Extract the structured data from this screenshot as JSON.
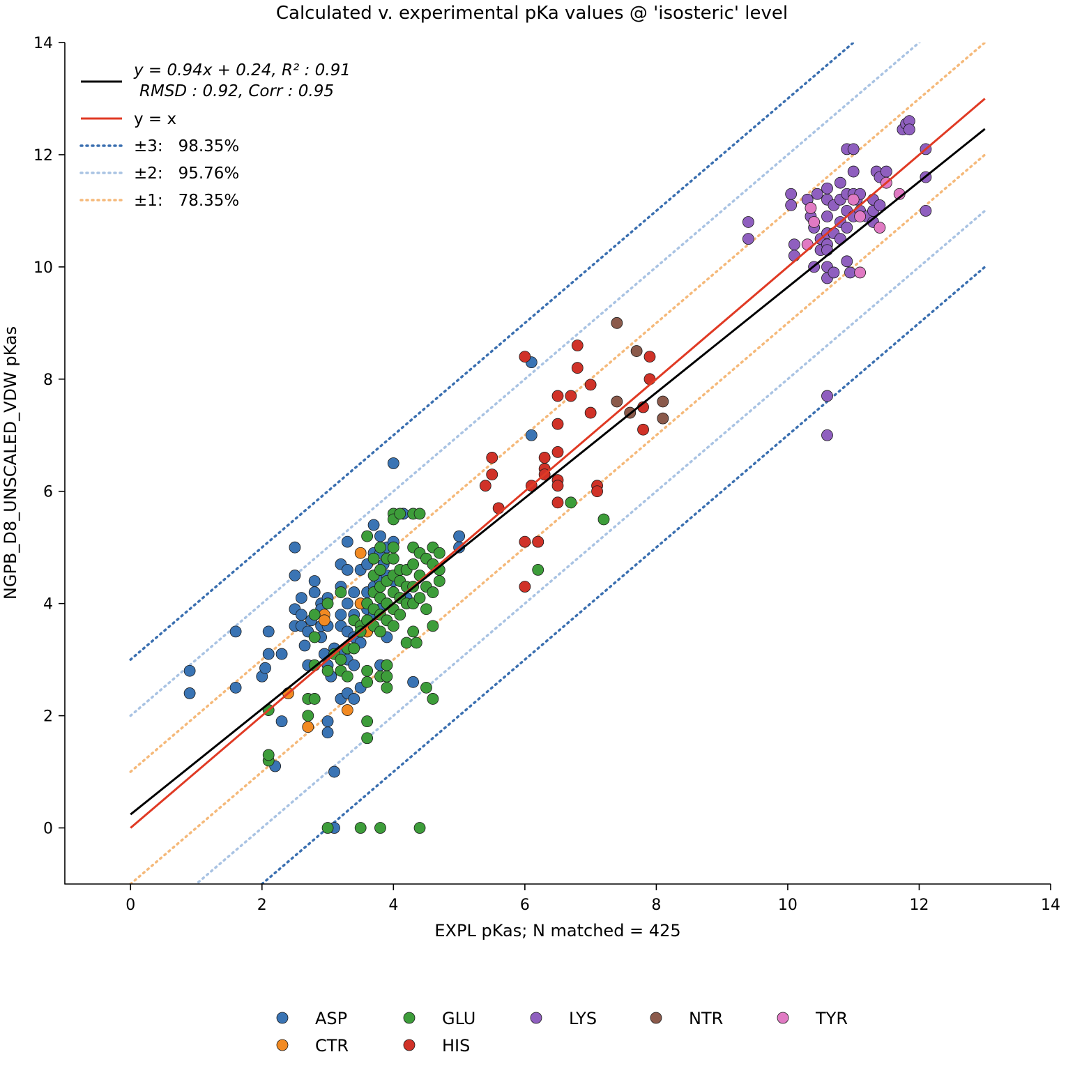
{
  "chart_data": {
    "type": "scatter",
    "title": "Calculated v. experimental pKa values @ 'isosteric' level",
    "xlabel": "EXPL pKas; N matched = 425",
    "ylabel": "NGPB_D8_UNSCALED_VDW pKas",
    "xlim": [
      -1,
      14
    ],
    "ylim": [
      -1,
      14
    ],
    "xticks": [
      0,
      2,
      4,
      6,
      8,
      10,
      12,
      14
    ],
    "yticks": [
      0,
      2,
      4,
      6,
      8,
      10,
      12,
      14
    ],
    "grid": false,
    "fit": {
      "slope": 0.94,
      "intercept": 0.24,
      "x_range": [
        0,
        13
      ]
    },
    "identity_range": [
      0,
      13
    ],
    "bands": [
      {
        "offset": 3,
        "color": "#3a6fb0",
        "label": "±3:   98.35%"
      },
      {
        "offset": 2,
        "color": "#a9c3e3",
        "label": "±2:   95.76%"
      },
      {
        "offset": 1,
        "color": "#f5b97a",
        "label": "±1:   78.35%"
      }
    ],
    "line_legend": {
      "fit_line1": "y = 0.94x + 0.24, R² : 0.91",
      "fit_line2": "RMSD : 0.92, Corr : 0.95",
      "identity": "y = x",
      "fit_color": "#000000",
      "identity_color": "#e03a24"
    },
    "series": [
      {
        "name": "ASP",
        "color": "#3a74b4",
        "points": [
          [
            0.9,
            2.8
          ],
          [
            0.9,
            2.4
          ],
          [
            1.6,
            3.5
          ],
          [
            1.6,
            2.5
          ],
          [
            2.0,
            2.7
          ],
          [
            2.05,
            2.85
          ],
          [
            2.1,
            3.5
          ],
          [
            2.1,
            3.1
          ],
          [
            2.2,
            1.1
          ],
          [
            2.3,
            3.1
          ],
          [
            2.3,
            1.9
          ],
          [
            2.5,
            5.0
          ],
          [
            2.5,
            4.5
          ],
          [
            2.5,
            3.9
          ],
          [
            2.5,
            3.6
          ],
          [
            2.6,
            4.1
          ],
          [
            2.6,
            3.8
          ],
          [
            2.6,
            3.6
          ],
          [
            2.65,
            3.25
          ],
          [
            2.7,
            2.9
          ],
          [
            2.7,
            3.5
          ],
          [
            2.75,
            3.7
          ],
          [
            2.8,
            4.4
          ],
          [
            2.8,
            4.2
          ],
          [
            2.9,
            4.0
          ],
          [
            2.9,
            3.9
          ],
          [
            2.9,
            3.6
          ],
          [
            2.9,
            3.4
          ],
          [
            2.95,
            3.1
          ],
          [
            3.0,
            4.1
          ],
          [
            3.0,
            3.6
          ],
          [
            3.0,
            2.9
          ],
          [
            3.0,
            1.9
          ],
          [
            3.0,
            1.7
          ],
          [
            3.05,
            2.7
          ],
          [
            3.1,
            3.2
          ],
          [
            3.1,
            1.0
          ],
          [
            3.1,
            0.0
          ],
          [
            3.2,
            4.7
          ],
          [
            3.2,
            4.3
          ],
          [
            3.2,
            3.8
          ],
          [
            3.2,
            3.6
          ],
          [
            3.2,
            3.1
          ],
          [
            3.2,
            2.3
          ],
          [
            3.3,
            5.1
          ],
          [
            3.3,
            4.6
          ],
          [
            3.3,
            4.0
          ],
          [
            3.3,
            3.5
          ],
          [
            3.3,
            3.0
          ],
          [
            3.3,
            2.4
          ],
          [
            3.4,
            4.2
          ],
          [
            3.4,
            3.8
          ],
          [
            3.4,
            3.4
          ],
          [
            3.4,
            2.9
          ],
          [
            3.4,
            2.3
          ],
          [
            3.5,
            4.6
          ],
          [
            3.5,
            4.0
          ],
          [
            3.5,
            3.3
          ],
          [
            3.5,
            2.5
          ],
          [
            3.6,
            4.7
          ],
          [
            3.6,
            4.2
          ],
          [
            3.6,
            3.9
          ],
          [
            3.6,
            3.5
          ],
          [
            3.7,
            5.4
          ],
          [
            3.7,
            4.9
          ],
          [
            3.7,
            4.3
          ],
          [
            3.7,
            3.8
          ],
          [
            3.8,
            5.2
          ],
          [
            3.8,
            4.9
          ],
          [
            3.8,
            4.4
          ],
          [
            3.8,
            3.9
          ],
          [
            3.8,
            2.9
          ],
          [
            3.85,
            4.7
          ],
          [
            3.9,
            5.0
          ],
          [
            3.9,
            4.5
          ],
          [
            3.9,
            4.0
          ],
          [
            3.9,
            3.4
          ],
          [
            3.9,
            2.9
          ],
          [
            4.0,
            6.5
          ],
          [
            4.0,
            5.1
          ],
          [
            4.0,
            4.4
          ],
          [
            4.15,
            5.6
          ],
          [
            4.2,
            4.1
          ],
          [
            4.3,
            2.6
          ],
          [
            5.0,
            5.2
          ],
          [
            5.0,
            5.0
          ],
          [
            6.1,
            8.3
          ],
          [
            6.1,
            7.0
          ]
        ]
      },
      {
        "name": "CTR",
        "color": "#f28a22",
        "points": [
          [
            2.4,
            2.4
          ],
          [
            2.7,
            1.8
          ],
          [
            2.95,
            3.8
          ],
          [
            2.95,
            3.7
          ],
          [
            3.3,
            2.1
          ],
          [
            3.5,
            4.9
          ],
          [
            3.5,
            4.0
          ],
          [
            3.6,
            3.5
          ]
        ]
      },
      {
        "name": "GLU",
        "color": "#3d9d3a",
        "points": [
          [
            2.1,
            1.2
          ],
          [
            2.1,
            1.3
          ],
          [
            2.1,
            2.1
          ],
          [
            2.7,
            2.3
          ],
          [
            2.7,
            2.0
          ],
          [
            2.8,
            2.3
          ],
          [
            2.8,
            3.4
          ],
          [
            2.8,
            3.8
          ],
          [
            2.8,
            2.9
          ],
          [
            3.0,
            4.0
          ],
          [
            3.0,
            2.8
          ],
          [
            3.0,
            0.0
          ],
          [
            3.1,
            3.1
          ],
          [
            3.2,
            4.2
          ],
          [
            3.2,
            3.0
          ],
          [
            3.2,
            2.8
          ],
          [
            3.3,
            2.7
          ],
          [
            3.3,
            3.2
          ],
          [
            3.4,
            3.7
          ],
          [
            3.4,
            3.2
          ],
          [
            3.5,
            3.6
          ],
          [
            3.5,
            3.5
          ],
          [
            3.5,
            0.0
          ],
          [
            3.6,
            5.2
          ],
          [
            3.6,
            4.0
          ],
          [
            3.6,
            3.7
          ],
          [
            3.6,
            2.8
          ],
          [
            3.6,
            2.6
          ],
          [
            3.6,
            1.9
          ],
          [
            3.6,
            1.6
          ],
          [
            3.7,
            4.8
          ],
          [
            3.7,
            4.5
          ],
          [
            3.7,
            4.2
          ],
          [
            3.7,
            3.9
          ],
          [
            3.7,
            3.6
          ],
          [
            3.8,
            5.0
          ],
          [
            3.8,
            4.6
          ],
          [
            3.8,
            4.3
          ],
          [
            3.8,
            4.1
          ],
          [
            3.8,
            3.8
          ],
          [
            3.8,
            3.5
          ],
          [
            3.8,
            2.7
          ],
          [
            3.8,
            0.0
          ],
          [
            3.9,
            4.8
          ],
          [
            3.9,
            4.4
          ],
          [
            3.9,
            4.0
          ],
          [
            3.9,
            3.7
          ],
          [
            3.9,
            2.9
          ],
          [
            3.9,
            2.7
          ],
          [
            3.9,
            2.5
          ],
          [
            4.0,
            5.6
          ],
          [
            4.0,
            5.5
          ],
          [
            4.0,
            5.0
          ],
          [
            4.0,
            4.8
          ],
          [
            4.0,
            4.5
          ],
          [
            4.0,
            4.2
          ],
          [
            4.0,
            3.9
          ],
          [
            4.0,
            3.6
          ],
          [
            4.1,
            5.6
          ],
          [
            4.1,
            4.6
          ],
          [
            4.1,
            4.4
          ],
          [
            4.1,
            4.1
          ],
          [
            4.1,
            3.8
          ],
          [
            4.2,
            4.6
          ],
          [
            4.2,
            4.3
          ],
          [
            4.2,
            4.0
          ],
          [
            4.2,
            3.3
          ],
          [
            4.3,
            5.6
          ],
          [
            4.3,
            5.0
          ],
          [
            4.3,
            4.7
          ],
          [
            4.3,
            4.3
          ],
          [
            4.3,
            4.0
          ],
          [
            4.3,
            3.5
          ],
          [
            4.35,
            3.3
          ],
          [
            4.4,
            5.6
          ],
          [
            4.4,
            4.9
          ],
          [
            4.4,
            4.5
          ],
          [
            4.4,
            4.1
          ],
          [
            4.4,
            0.0
          ],
          [
            4.5,
            4.8
          ],
          [
            4.5,
            4.3
          ],
          [
            4.5,
            3.9
          ],
          [
            4.5,
            2.5
          ],
          [
            4.6,
            5.0
          ],
          [
            4.6,
            4.7
          ],
          [
            4.6,
            4.2
          ],
          [
            4.6,
            3.6
          ],
          [
            4.6,
            2.3
          ],
          [
            4.7,
            4.9
          ],
          [
            4.7,
            4.6
          ],
          [
            4.7,
            4.4
          ],
          [
            6.2,
            5.1
          ],
          [
            6.2,
            4.6
          ],
          [
            6.7,
            5.8
          ],
          [
            7.2,
            5.5
          ]
        ]
      },
      {
        "name": "HIS",
        "color": "#d03228",
        "points": [
          [
            5.4,
            6.1
          ],
          [
            5.5,
            6.6
          ],
          [
            5.5,
            6.3
          ],
          [
            5.6,
            5.7
          ],
          [
            6.0,
            8.4
          ],
          [
            6.0,
            5.1
          ],
          [
            6.0,
            4.3
          ],
          [
            6.1,
            6.1
          ],
          [
            6.2,
            5.1
          ],
          [
            6.3,
            6.6
          ],
          [
            6.3,
            6.4
          ],
          [
            6.3,
            6.3
          ],
          [
            6.5,
            7.7
          ],
          [
            6.5,
            7.2
          ],
          [
            6.5,
            6.7
          ],
          [
            6.5,
            6.2
          ],
          [
            6.5,
            5.8
          ],
          [
            6.5,
            6.1
          ],
          [
            6.7,
            7.7
          ],
          [
            6.8,
            8.6
          ],
          [
            6.8,
            8.2
          ],
          [
            7.0,
            7.9
          ],
          [
            7.0,
            7.4
          ],
          [
            7.1,
            6.1
          ],
          [
            7.1,
            6.0
          ],
          [
            7.8,
            7.5
          ],
          [
            7.8,
            7.1
          ],
          [
            7.9,
            8.4
          ],
          [
            7.9,
            8.0
          ]
        ]
      },
      {
        "name": "LYS",
        "color": "#8f5fbf",
        "points": [
          [
            9.4,
            10.8
          ],
          [
            9.4,
            10.5
          ],
          [
            10.05,
            11.3
          ],
          [
            10.05,
            11.1
          ],
          [
            10.1,
            10.4
          ],
          [
            10.1,
            10.2
          ],
          [
            10.3,
            11.2
          ],
          [
            10.35,
            10.9
          ],
          [
            10.4,
            10.7
          ],
          [
            10.4,
            10.0
          ],
          [
            10.45,
            11.3
          ],
          [
            10.5,
            10.5
          ],
          [
            10.5,
            10.3
          ],
          [
            10.6,
            11.4
          ],
          [
            10.6,
            11.2
          ],
          [
            10.6,
            10.9
          ],
          [
            10.6,
            10.6
          ],
          [
            10.6,
            10.4
          ],
          [
            10.6,
            10.3
          ],
          [
            10.6,
            10.0
          ],
          [
            10.6,
            9.8
          ],
          [
            10.6,
            7.7
          ],
          [
            10.6,
            7.0
          ],
          [
            10.7,
            11.1
          ],
          [
            10.7,
            10.6
          ],
          [
            10.7,
            9.9
          ],
          [
            10.8,
            11.5
          ],
          [
            10.8,
            11.2
          ],
          [
            10.8,
            10.8
          ],
          [
            10.8,
            10.5
          ],
          [
            10.9,
            12.1
          ],
          [
            10.9,
            11.3
          ],
          [
            10.9,
            11.0
          ],
          [
            10.9,
            10.7
          ],
          [
            10.9,
            10.1
          ],
          [
            10.95,
            9.9
          ],
          [
            11.0,
            12.1
          ],
          [
            11.0,
            11.7
          ],
          [
            11.0,
            11.3
          ],
          [
            11.0,
            10.9
          ],
          [
            11.05,
            11.2
          ],
          [
            11.1,
            11.3
          ],
          [
            11.1,
            11.0
          ],
          [
            11.2,
            10.9
          ],
          [
            11.3,
            11.2
          ],
          [
            11.3,
            11.0
          ],
          [
            11.3,
            10.8
          ],
          [
            11.35,
            11.7
          ],
          [
            11.4,
            11.6
          ],
          [
            11.4,
            11.1
          ],
          [
            11.5,
            11.7
          ],
          [
            11.75,
            12.45
          ],
          [
            11.8,
            12.55
          ],
          [
            11.85,
            12.6
          ],
          [
            11.85,
            12.45
          ],
          [
            12.1,
            12.1
          ],
          [
            12.1,
            11.6
          ],
          [
            12.1,
            11.0
          ]
        ]
      },
      {
        "name": "NTR",
        "color": "#8b5a4b",
        "points": [
          [
            7.4,
            9.0
          ],
          [
            7.4,
            7.6
          ],
          [
            7.6,
            7.4
          ],
          [
            7.7,
            8.5
          ],
          [
            8.1,
            7.6
          ],
          [
            8.1,
            7.3
          ]
        ]
      },
      {
        "name": "TYR",
        "color": "#e07ac3",
        "points": [
          [
            10.3,
            10.4
          ],
          [
            10.35,
            11.05
          ],
          [
            10.4,
            10.8
          ],
          [
            11.0,
            11.2
          ],
          [
            11.1,
            9.9
          ],
          [
            11.1,
            10.9
          ],
          [
            11.4,
            10.7
          ],
          [
            11.5,
            11.5
          ],
          [
            11.7,
            11.3
          ]
        ]
      }
    ],
    "legend_columns": [
      [
        "ASP",
        "CTR"
      ],
      [
        "GLU",
        "HIS"
      ],
      [
        "LYS"
      ],
      [
        "NTR"
      ],
      [
        "TYR"
      ]
    ]
  }
}
